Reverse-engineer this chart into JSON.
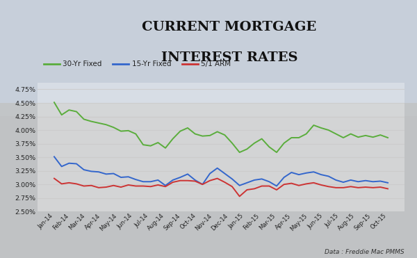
{
  "title_line1": "CURRENT MORTGAGE",
  "title_line2": "INTEREST RATES",
  "source_text": "Data : Freddie Mac PMMS",
  "x_labels": [
    "Jan-14",
    "Feb-14",
    "Mar-14",
    "Apr-14",
    "May-14",
    "Jun-14",
    "Jul-14",
    "Aug-14",
    "Sep-14",
    "Oct-14",
    "Nov-14",
    "Dec-14",
    "Jan-15",
    "Feb-15",
    "Mar-15",
    "Apr-15",
    "May-15",
    "Jun-15",
    "Jul-15",
    "Aug-15",
    "Sep-15",
    "Oct-15"
  ],
  "ylim": [
    2.5,
    4.875
  ],
  "yticks": [
    2.5,
    2.75,
    3.0,
    3.25,
    3.5,
    3.75,
    4.0,
    4.25,
    4.5,
    4.75
  ],
  "series_30yr": [
    4.51,
    4.28,
    4.37,
    4.34,
    4.2,
    4.16,
    4.13,
    4.1,
    4.05,
    3.98,
    3.99,
    3.93,
    3.73,
    3.71,
    3.77,
    3.67,
    3.84,
    3.98,
    4.04,
    3.93,
    3.89,
    3.9,
    3.97,
    3.91,
    3.76,
    3.59,
    3.65,
    3.76,
    3.84,
    3.69,
    3.59,
    3.76,
    3.86,
    3.86,
    3.93,
    4.09,
    4.04,
    4.0,
    3.93,
    3.86,
    3.93,
    3.87,
    3.9,
    3.87,
    3.91,
    3.86
  ],
  "series_15yr": [
    3.51,
    3.33,
    3.39,
    3.38,
    3.27,
    3.24,
    3.23,
    3.19,
    3.2,
    3.13,
    3.14,
    3.09,
    3.05,
    3.05,
    3.08,
    2.98,
    3.08,
    3.13,
    3.19,
    3.08,
    3.0,
    3.2,
    3.3,
    3.2,
    3.1,
    2.98,
    3.03,
    3.08,
    3.1,
    3.05,
    2.97,
    3.13,
    3.22,
    3.18,
    3.21,
    3.23,
    3.18,
    3.15,
    3.08,
    3.04,
    3.08,
    3.05,
    3.07,
    3.05,
    3.06,
    3.03
  ],
  "series_arm": [
    3.11,
    3.01,
    3.03,
    3.01,
    2.97,
    2.98,
    2.94,
    2.95,
    2.98,
    2.95,
    2.99,
    2.97,
    2.97,
    2.96,
    2.99,
    2.96,
    3.04,
    3.07,
    3.07,
    3.06,
    3.0,
    3.07,
    3.11,
    3.04,
    2.96,
    2.78,
    2.9,
    2.92,
    2.97,
    2.97,
    2.9,
    3.0,
    3.02,
    2.98,
    3.01,
    3.03,
    2.99,
    2.96,
    2.94,
    2.94,
    2.96,
    2.94,
    2.95,
    2.94,
    2.95,
    2.92
  ],
  "color_30yr": "#5aad3c",
  "color_15yr": "#3366cc",
  "color_arm": "#cc3333",
  "legend_labels": [
    "30-Yr Fixed",
    "15-Yr Fixed",
    "5/1 ARM"
  ],
  "bg_color": "#b8bfcc",
  "plot_bg_alpha": 0.55,
  "grid_color": "#cccccc",
  "title_color": "#111111",
  "tick_color": "#222222"
}
